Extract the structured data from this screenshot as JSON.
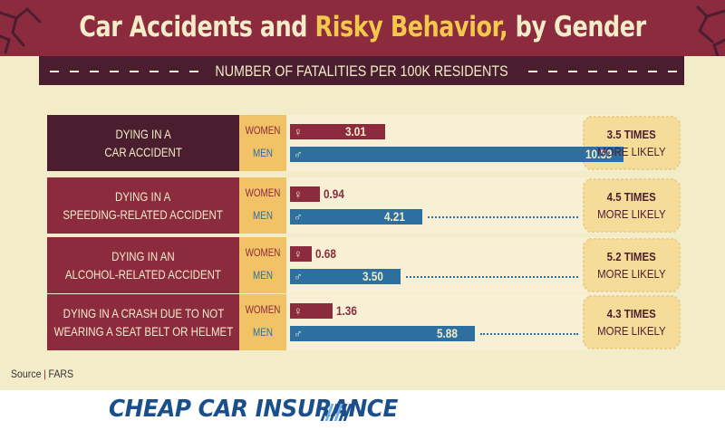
{
  "header": {
    "title_part1": "Car Accidents and ",
    "title_highlight": "Risky Behavior,",
    "title_part2": " by Gender",
    "subtitle": "NUMBER OF FATALITIES PER 100K RESIDENTS"
  },
  "colors": {
    "women": "#8c2a3e",
    "men": "#2c6fa0",
    "label_bg_dark": "#4a1e2e",
    "label_bg_red": "#8c2a3e",
    "gender_col": "#f2c267"
  },
  "icons": {
    "women": "♀",
    "men": "♂"
  },
  "chart_data": {
    "type": "bar",
    "orientation": "horizontal",
    "categories": [
      [
        "DYING IN A",
        "CAR ACCIDENT"
      ],
      [
        "DYING IN A",
        "SPEEDING-RELATED ACCIDENT"
      ],
      [
        "DYING IN AN",
        "ALCOHOL-RELATED ACCIDENT"
      ],
      [
        "DYING IN A CRASH DUE TO NOT",
        "WEARING A SEAT BELT OR HELMET"
      ]
    ],
    "series": [
      {
        "name": "WOMEN",
        "values": [
          3.01,
          0.94,
          0.68,
          1.36
        ],
        "labels": [
          "3.01",
          "0.94",
          "0.68",
          "1.36"
        ]
      },
      {
        "name": "MEN",
        "values": [
          10.59,
          4.21,
          3.5,
          5.88
        ],
        "labels": [
          "10.59",
          "4.21",
          "3.50",
          "5.88"
        ]
      }
    ],
    "ratios": [
      [
        "3.5 TIMES",
        "MORE LIKELY"
      ],
      [
        "4.5 TIMES",
        "MORE LIKELY"
      ],
      [
        "5.2 TIMES",
        "MORE LIKELY"
      ],
      [
        "4.3 TIMES",
        "MORE LIKELY"
      ]
    ],
    "xlim": [
      0,
      10.59
    ],
    "grid": false
  },
  "source": {
    "label": "Source",
    "separator": "|",
    "value": "FARS"
  },
  "footer": {
    "brand": "CHEAP CAR INSURANCE"
  }
}
